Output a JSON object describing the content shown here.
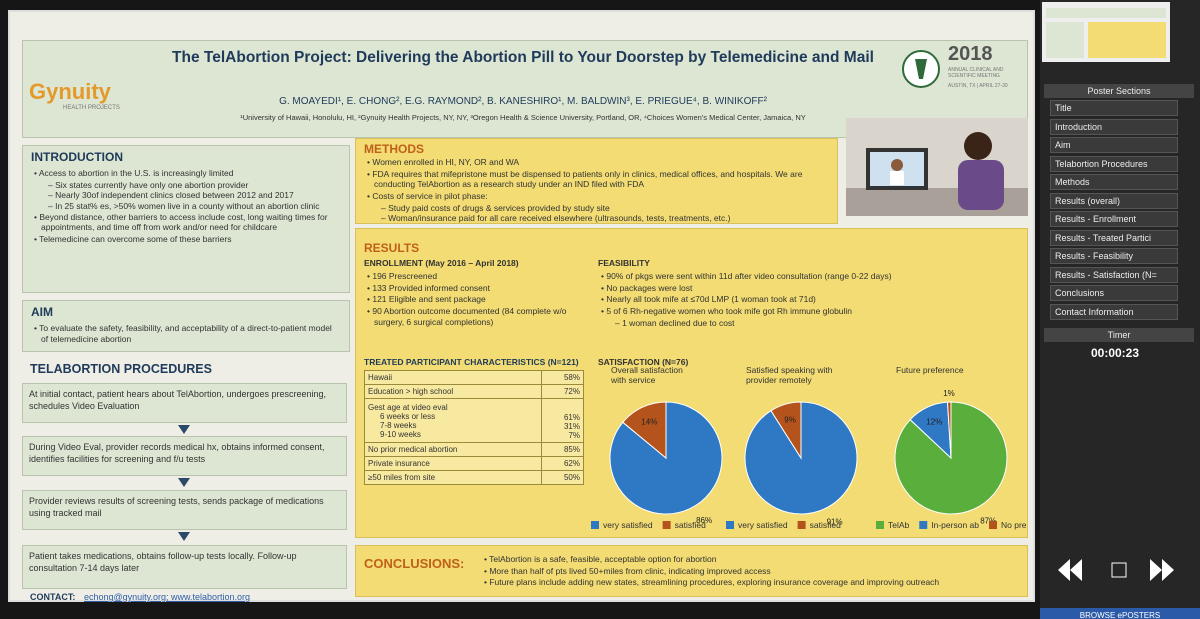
{
  "poster": {
    "title": "The TelAbortion Project: Delivering the Abortion Pill to Your Doorstep by Telemedicine and Mail",
    "authors": "G. MOAYEDI¹, E. CHONG², E.G. RAYMOND², B. KANESHIRO¹, M. BALDWIN³, E. PRIEGUE⁴, B. WINIKOFF²",
    "affiliations": "¹University of Hawaii, Honolulu, HI, ²Gynuity Health Projects, NY, NY, ³Oregon Health & Science University, Portland, OR, ⁴Choices Women's Medical Center, Jamaica, NY",
    "logo": "Gynuity",
    "logo_subtitle": "HEALTH PROJECTS",
    "meeting_year": "2018",
    "meeting_name": "ANNUAL CLINICAL AND SCIENTIFIC MEETING",
    "meeting_place": "AUSTIN, TX | APRIL 27-30"
  },
  "introduction": {
    "heading": "INTRODUCTION",
    "items": [
      {
        "text": "Access to abortion in the U.S. is increasingly limited",
        "sub": [
          "Six states currently have only one abortion provider",
          "Nearly 30of independent clinics closed between 2012 and 2017",
          "In 25 stat% es, >50% women live in a county without an abortion clinic"
        ]
      },
      {
        "text": "Beyond distance, other barriers to access include cost, long waiting times for appointments, and time off from work and/or need for childcare"
      },
      {
        "text": "Telemedicine can overcome some of these barriers"
      }
    ]
  },
  "aim": {
    "heading": "AIM",
    "items": [
      {
        "text": "To evaluate the safety, feasibility, and acceptability of a direct-to-patient model of telemedicine abortion"
      }
    ]
  },
  "procedures": {
    "heading": "TELABORTION PROCEDURES",
    "steps": [
      "At initial contact, patient hears about TelAbortion, undergoes prescreening, schedules Video Evaluation",
      "During Video Eval, provider records medical hx, obtains informed consent, identifies facilities for screening and f/u tests",
      "Provider reviews results of screening tests, sends package of medications using tracked mail",
      "Patient takes medications, obtains follow-up tests locally. Follow-up consultation 7-14 days later"
    ]
  },
  "contact": {
    "label": "CONTACT:",
    "links": "echong@gynuity.org; www.telabortion.org"
  },
  "methods": {
    "heading": "METHODS",
    "items": [
      {
        "text": "Women enrolled in HI, NY, OR and WA"
      },
      {
        "text": "FDA requires that mifepristone must be dispensed to patients only in clinics, medical offices, and hospitals. We are conducting TelAbortion as a research study under an IND filed with FDA"
      },
      {
        "text": "Costs of service in pilot phase:",
        "sub": [
          "Study paid costs of drugs & services provided by study site",
          "Woman/insurance paid for all care received elsewhere (ultrasounds, tests, treatments, etc.)"
        ]
      }
    ]
  },
  "results": {
    "heading": "RESULTS",
    "enrollment": {
      "heading": "ENROLLMENT (May 2016 – April 2018)",
      "items": [
        {
          "text": "196 Prescreened"
        },
        {
          "text": "133 Provided informed consent"
        },
        {
          "text": "121 Eligible and sent package"
        },
        {
          "text": "90 Abortion outcome documented (84 complete w/o surgery, 6 surgical completions)"
        }
      ]
    },
    "feasibility": {
      "heading": "FEASIBILITY",
      "items": [
        {
          "text": "90% of pkgs were sent within 11d after video consultation (range 0-22 days)"
        },
        {
          "text": "No packages were lost"
        },
        {
          "text": "Nearly all took mife at ≤70d LMP (1 woman took at 71d)"
        },
        {
          "text": "5 of 6 Rh-negative women who took mife got Rh immune globulin",
          "sub": [
            "1 woman declined due to cost"
          ]
        }
      ]
    },
    "characteristics": {
      "heading": "TREATED PARTICIPANT CHARACTERISTICS (N=121)",
      "rows": [
        {
          "label": "Hawaii",
          "value": "58%"
        },
        {
          "label": "Education > high school",
          "value": "72%"
        },
        {
          "label": "Gest age at video eval",
          "sub": [
            {
              "label": "6 weeks or less",
              "value": "61%"
            },
            {
              "label": "7-8 weeks",
              "value": "31%"
            },
            {
              "label": "9-10 weeks",
              "value": "7%"
            }
          ]
        },
        {
          "label": "No prior medical abortion",
          "value": "85%"
        },
        {
          "label": "Private insurance",
          "value": "62%"
        },
        {
          "label": "≥50 miles from site",
          "value": "50%"
        }
      ]
    },
    "satisfaction": {
      "heading": "SATISFACTION (N=76)",
      "charts": [
        {
          "type": "pie",
          "title": "Overall satisfaction with service",
          "categories": [
            "very satisfied",
            "satisfied"
          ],
          "values": [
            86,
            14
          ],
          "value_labels": [
            "86%",
            "14%"
          ],
          "colors": [
            "#2f78c4",
            "#b4541c"
          ]
        },
        {
          "type": "pie",
          "title": "Satisfied speaking with provider remotely",
          "categories": [
            "very satisfied",
            "satisfied"
          ],
          "values": [
            91,
            9
          ],
          "value_labels": [
            "91%",
            "9%"
          ],
          "colors": [
            "#2f78c4",
            "#b4541c"
          ]
        },
        {
          "type": "pie",
          "title": "Future preference",
          "categories": [
            "TelAb",
            "In-person ab",
            "No pref"
          ],
          "values": [
            87,
            12,
            1
          ],
          "value_labels": [
            "87%",
            "12%",
            "1%"
          ],
          "colors": [
            "#5aae3c",
            "#2f78c4",
            "#b4541c"
          ]
        }
      ]
    }
  },
  "conclusions": {
    "heading": "CONCLUSIONS:",
    "items": [
      "TelAbortion is a safe, feasible, acceptable option for abortion",
      "More than half of pts lived 50+miles from clinic, indicating improved access",
      "Future plans include adding new states, streamlining procedures, exploring insurance coverage and improving outreach"
    ]
  },
  "sidebar": {
    "heading": "Poster Sections",
    "sections": [
      "Title",
      "Introduction",
      "Aim",
      "Telabortion Procedures",
      "Methods",
      "Results (overall)",
      "Results - Enrollment",
      "Results - Treated Partici",
      "Results - Feasibility",
      "Results - Satisfaction (N=",
      "Conclusions",
      "Contact Information"
    ],
    "timer_label": "Timer",
    "timer": "00:00:23",
    "browse": "BROWSE ePOSTERS"
  }
}
